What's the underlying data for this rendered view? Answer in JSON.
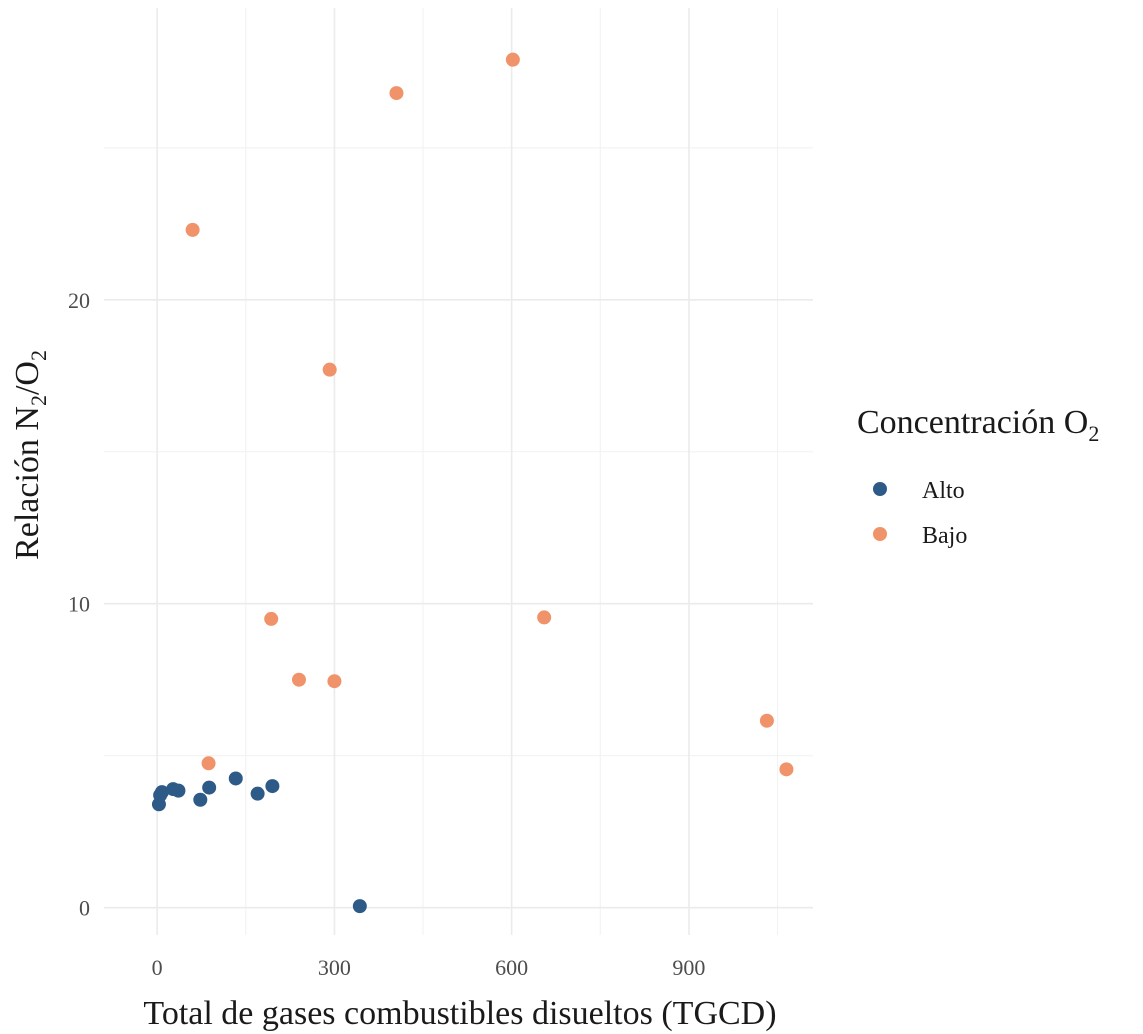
{
  "chart_data": {
    "type": "scatter",
    "title": "",
    "xlabel": "Total de gases combustibles disueltos (TGCD)",
    "ylabel": {
      "prefix": "Relación N",
      "sub1": "2",
      "mid": "/O",
      "sub2": "2"
    },
    "xlim": [
      -90,
      1110
    ],
    "ylim": [
      -0.9,
      29.6
    ],
    "x_ticks": [
      0,
      300,
      600,
      900
    ],
    "x_tick_labels": [
      "0",
      "300",
      "600",
      "900"
    ],
    "y_ticks": [
      0,
      10,
      20
    ],
    "y_tick_labels": [
      "0",
      "10",
      "20"
    ],
    "grid": true,
    "legend": {
      "title_prefix": "Concentración O",
      "title_sub": "2",
      "position": "right"
    },
    "series": [
      {
        "name": "Alto",
        "color": "#2e5a87",
        "points": [
          {
            "x": 3,
            "y": 3.4
          },
          {
            "x": 5,
            "y": 3.7
          },
          {
            "x": 8,
            "y": 3.8
          },
          {
            "x": 27,
            "y": 3.9
          },
          {
            "x": 36,
            "y": 3.85
          },
          {
            "x": 73,
            "y": 3.55
          },
          {
            "x": 88,
            "y": 3.95
          },
          {
            "x": 133,
            "y": 4.25
          },
          {
            "x": 170,
            "y": 3.75
          },
          {
            "x": 195,
            "y": 4.0
          },
          {
            "x": 343,
            "y": 0.05
          }
        ]
      },
      {
        "name": "Bajo",
        "color": "#f0936b",
        "points": [
          {
            "x": 60,
            "y": 22.3
          },
          {
            "x": 87,
            "y": 4.75
          },
          {
            "x": 193,
            "y": 9.5
          },
          {
            "x": 240,
            "y": 7.5
          },
          {
            "x": 292,
            "y": 17.7
          },
          {
            "x": 300,
            "y": 7.45
          },
          {
            "x": 405,
            "y": 26.8
          },
          {
            "x": 602,
            "y": 27.9
          },
          {
            "x": 655,
            "y": 9.55
          },
          {
            "x": 1032,
            "y": 6.15
          },
          {
            "x": 1065,
            "y": 4.55
          }
        ]
      }
    ]
  }
}
